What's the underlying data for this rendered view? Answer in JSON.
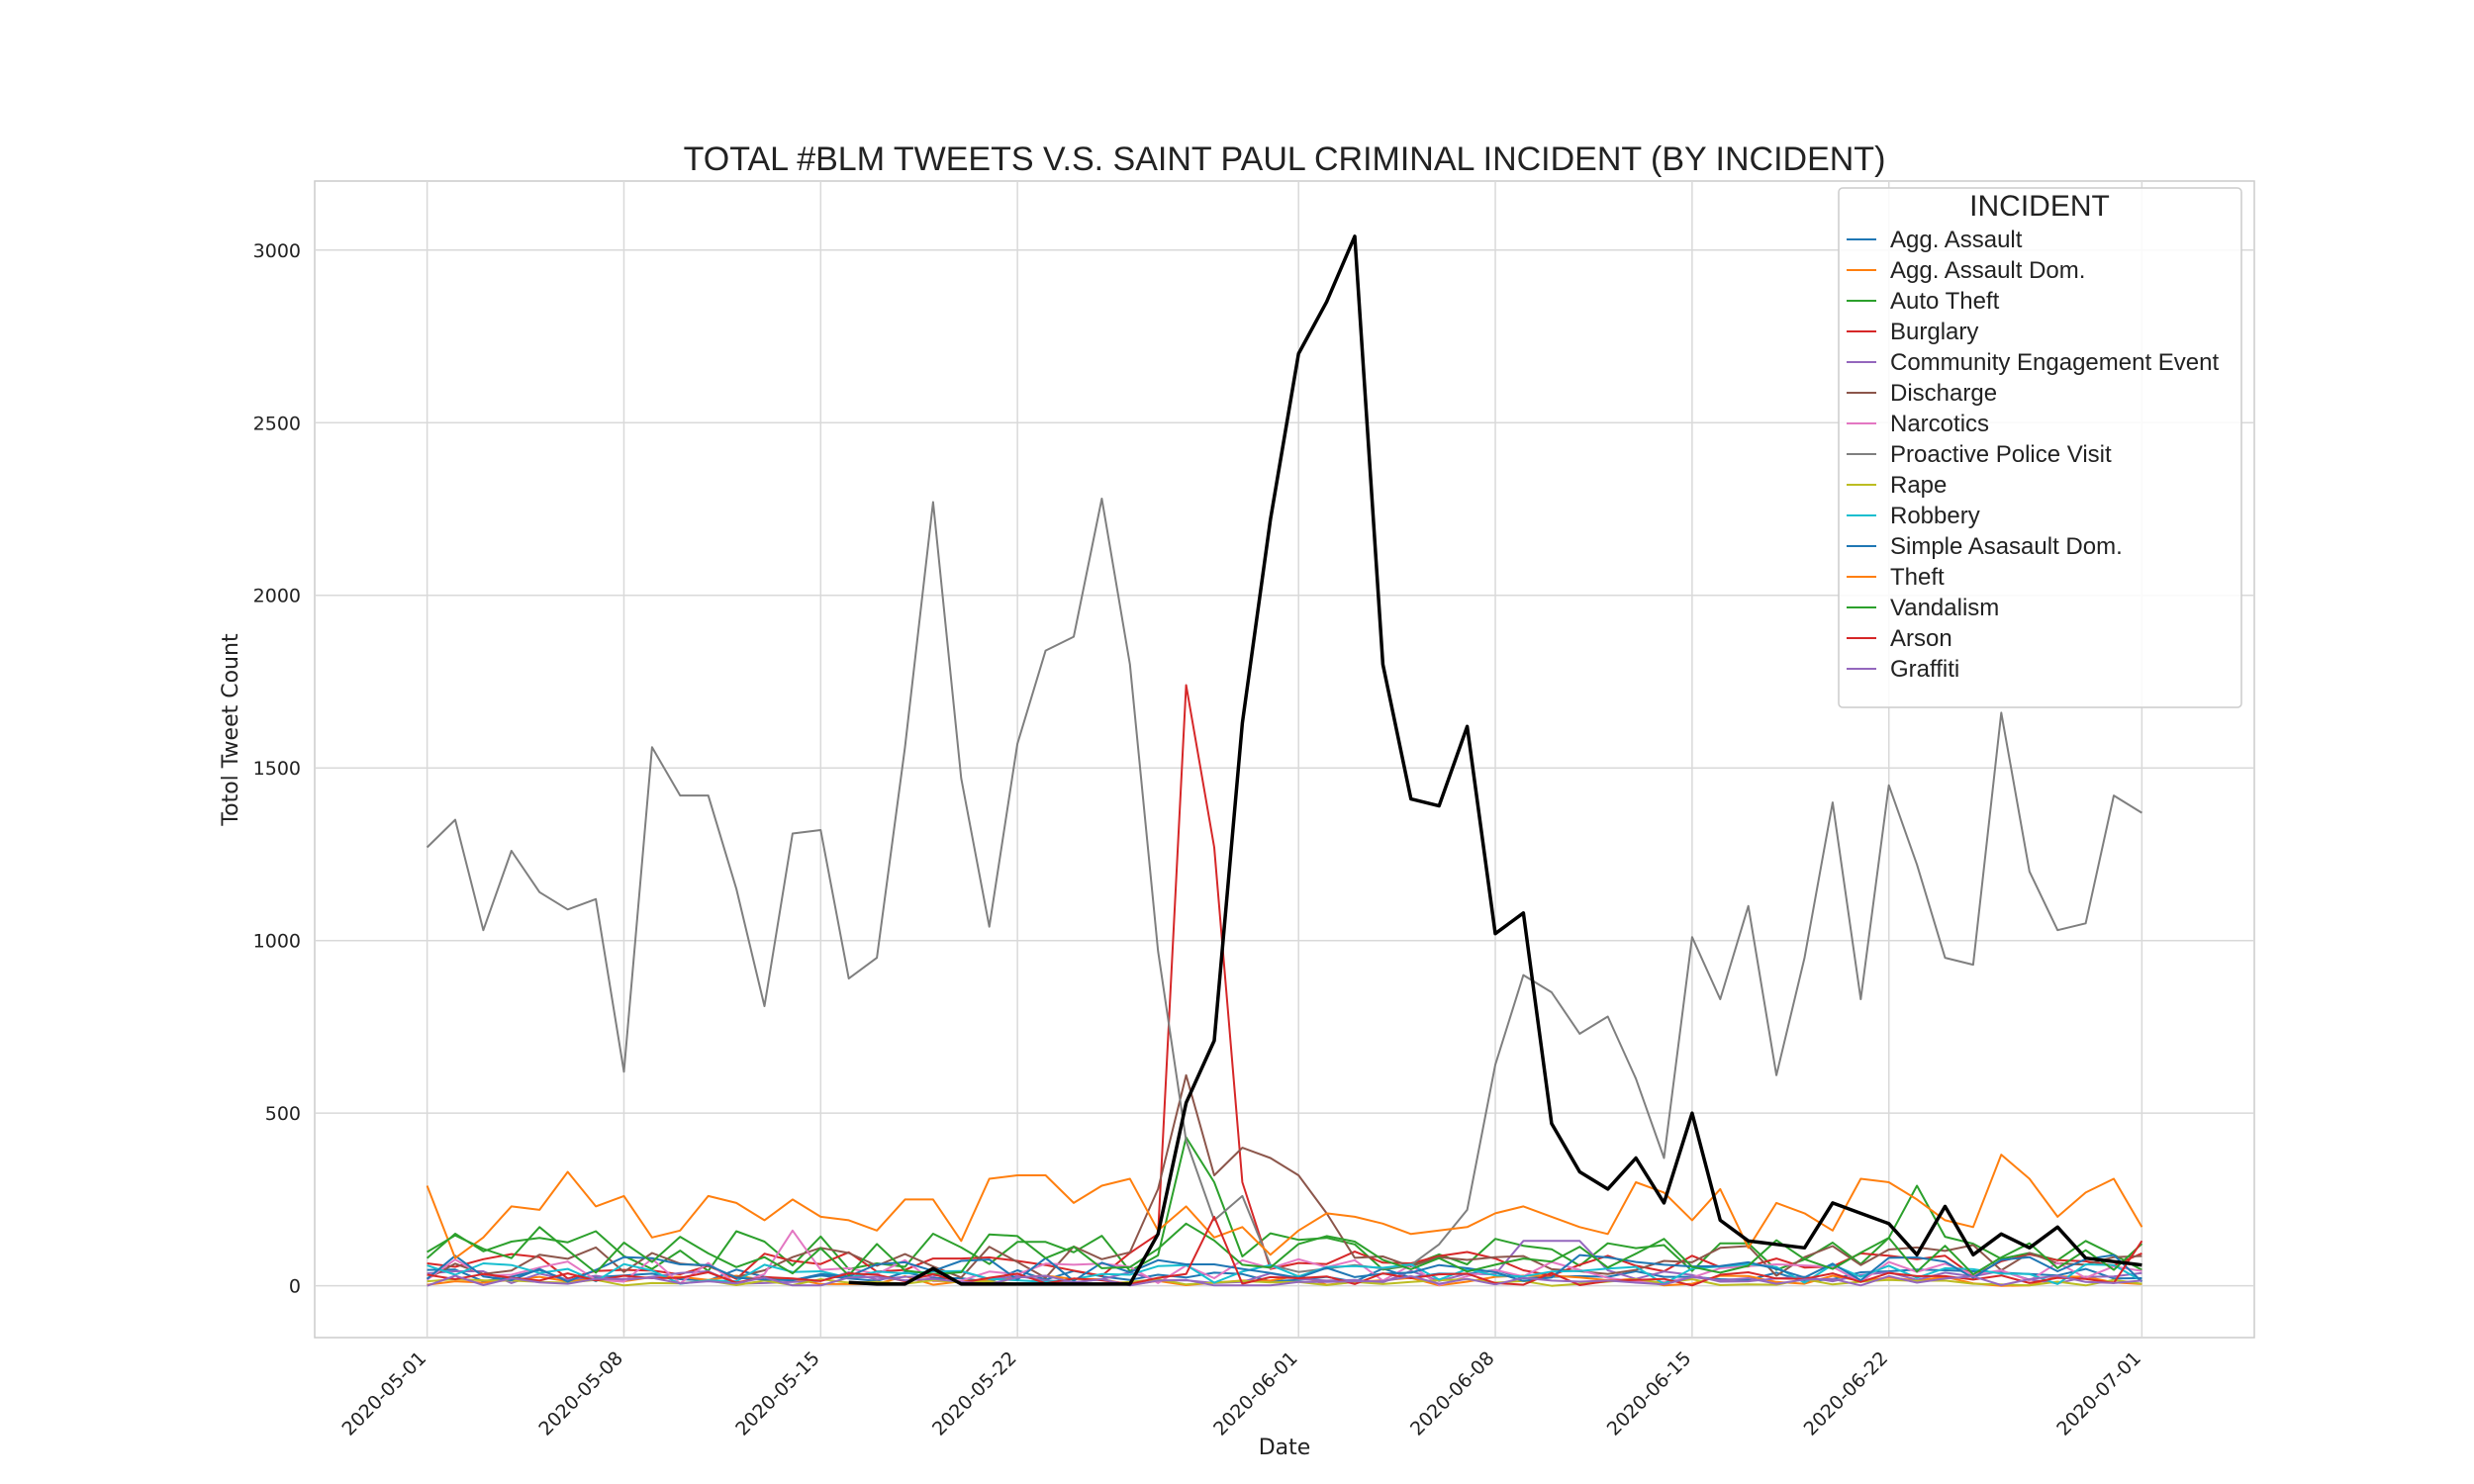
{
  "chart_data": {
    "type": "line",
    "title": "TOTAL #BLM TWEETS V.S. SAINT PAUL CRIMINAL INCIDENT (BY INCIDENT)",
    "xlabel": "Date",
    "ylabel": "Totol Tweet Count",
    "xlim": [
      "2020-04-27",
      "2020-07-05"
    ],
    "ylim": [
      -150,
      3200
    ],
    "x_ticks": [
      "2020-05-01",
      "2020-05-08",
      "2020-05-15",
      "2020-05-22",
      "2020-06-01",
      "2020-06-08",
      "2020-06-15",
      "2020-06-22",
      "2020-07-01"
    ],
    "y_ticks": [
      0,
      500,
      1000,
      1500,
      2000,
      2500,
      3000
    ],
    "grid": true,
    "legend": {
      "title": "INCIDENT",
      "placement": "top-right"
    },
    "series": [
      {
        "name": "Agg. Assault",
        "color": "#1f77b4",
        "base": 30,
        "spread": 20,
        "spikes": {}
      },
      {
        "name": "Agg. Assault Dom.",
        "color": "#ff7f0e",
        "base": 15,
        "spread": 15,
        "spikes": {}
      },
      {
        "name": "Auto Theft",
        "color": "#2ca02c",
        "base": 100,
        "spread": 60,
        "spikes": {
          "2020-05-28": 430,
          "2020-05-29": 300,
          "2020-06-23": 290
        }
      },
      {
        "name": "Burglary",
        "color": "#d62728",
        "base": 60,
        "spread": 40,
        "spikes": {
          "2020-05-27": 150,
          "2020-05-28": 1740,
          "2020-05-29": 1270,
          "2020-05-30": 300
        }
      },
      {
        "name": "Community Engagement Event",
        "color": "#9467bd",
        "base": 25,
        "spread": 20,
        "spikes": {
          "2020-06-09": 130,
          "2020-06-10": 130,
          "2020-06-11": 130
        }
      },
      {
        "name": "Discharge",
        "color": "#8c564b",
        "base": 70,
        "spread": 50,
        "spikes": {
          "2020-05-27": 280,
          "2020-05-28": 610,
          "2020-05-29": 320,
          "2020-05-30": 400,
          "2020-05-31": 370,
          "2020-06-01": 320,
          "2020-06-02": 210
        }
      },
      {
        "name": "Narcotics",
        "color": "#e377c2",
        "base": 40,
        "spread": 40,
        "spikes": {
          "2020-05-14": 160
        }
      },
      {
        "name": "Proactive Police Visit",
        "color": "#7f7f7f",
        "base": null,
        "spread": 0,
        "values": [
          1270,
          1350,
          1030,
          1260,
          1140,
          1090,
          1120,
          620,
          1560,
          1420,
          1420,
          1150,
          810,
          1310,
          1320,
          890,
          950,
          1560,
          2270,
          1470,
          1040,
          1570,
          1840,
          1880,
          2280,
          1800,
          970,
          420,
          190,
          260,
          60,
          40,
          50,
          60,
          50,
          60,
          120,
          220,
          640,
          900,
          850,
          730,
          780,
          600,
          370,
          1010,
          830,
          1100,
          610,
          950,
          1400,
          830,
          1450,
          1220,
          950,
          930,
          1660,
          1200,
          1030,
          1050,
          1420,
          1370
        ]
      },
      {
        "name": "Rape",
        "color": "#bcbd22",
        "base": 10,
        "spread": 10,
        "spikes": {}
      },
      {
        "name": "Robbery",
        "color": "#17becf",
        "base": 35,
        "spread": 30,
        "spikes": {}
      },
      {
        "name": "Simple Asasault Dom.",
        "color": "#1f77b4",
        "base": 50,
        "spread": 40,
        "spikes": {}
      },
      {
        "name": "Theft",
        "color": "#ff7f0e",
        "base": null,
        "spread": 0,
        "values": [
          290,
          80,
          140,
          230,
          220,
          330,
          230,
          260,
          140,
          160,
          260,
          240,
          190,
          250,
          200,
          190,
          160,
          250,
          250,
          130,
          310,
          320,
          320,
          240,
          290,
          310,
          160,
          230,
          140,
          170,
          90,
          160,
          210,
          200,
          180,
          150,
          160,
          170,
          210,
          230,
          200,
          170,
          150,
          300,
          270,
          190,
          280,
          110,
          240,
          210,
          160,
          310,
          300,
          250,
          190,
          170,
          380,
          310,
          200,
          270,
          310,
          170
        ]
      },
      {
        "name": "Vandalism",
        "color": "#2ca02c",
        "base": 90,
        "spread": 60,
        "spikes": {
          "2020-05-05": 170,
          "2020-05-28": 180
        }
      },
      {
        "name": "Arson",
        "color": "#d62728",
        "base": 20,
        "spread": 20,
        "spikes": {
          "2020-05-29": 200,
          "2020-07-01": 130
        }
      },
      {
        "name": "Graffiti",
        "color": "#9467bd",
        "base": 15,
        "spread": 15,
        "spikes": {}
      },
      {
        "name": "",
        "color": "#000000",
        "role": "total_blm_tweets",
        "start": "2020-05-16",
        "values": [
          10,
          5,
          5,
          50,
          5,
          5,
          5,
          5,
          5,
          5,
          5,
          150,
          530,
          710,
          1630,
          2220,
          2700,
          2850,
          3040,
          1800,
          1410,
          1390,
          1620,
          1020,
          1080,
          470,
          330,
          280,
          370,
          240,
          500,
          190,
          130,
          120,
          110,
          240,
          210,
          180,
          90,
          230,
          90,
          150,
          110,
          170,
          80,
          70,
          60
        ]
      }
    ]
  }
}
